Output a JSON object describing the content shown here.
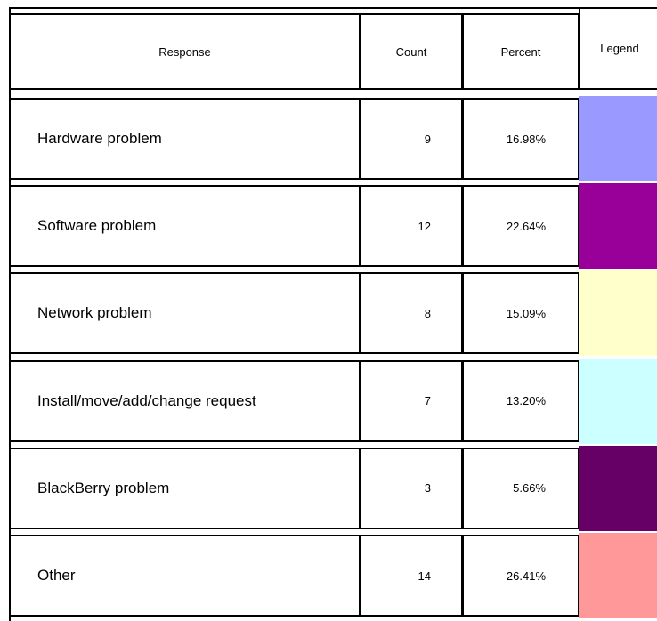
{
  "table": {
    "header": [
      "Response",
      "Count",
      "Percent",
      "Legend"
    ],
    "rows": [
      {
        "response": "Hardware problem",
        "count": 9,
        "percent": "16.98%",
        "color": "#9999ff"
      },
      {
        "response": "Software problem",
        "count": 12,
        "percent": "22.64%",
        "color": "#990099"
      },
      {
        "response": "Network problem",
        "count": 8,
        "percent": "15.09%",
        "color": "#ffffcc"
      },
      {
        "response": "Install/move/add/change request",
        "count": 7,
        "percent": "13.20%",
        "color": "#ccffff"
      },
      {
        "response": "BlackBerry problem",
        "count": 3,
        "percent": "5.66%",
        "color": "#660066"
      },
      {
        "response": "Other",
        "count": 14,
        "percent": "26.41%",
        "color": "#ff9999"
      }
    ]
  }
}
